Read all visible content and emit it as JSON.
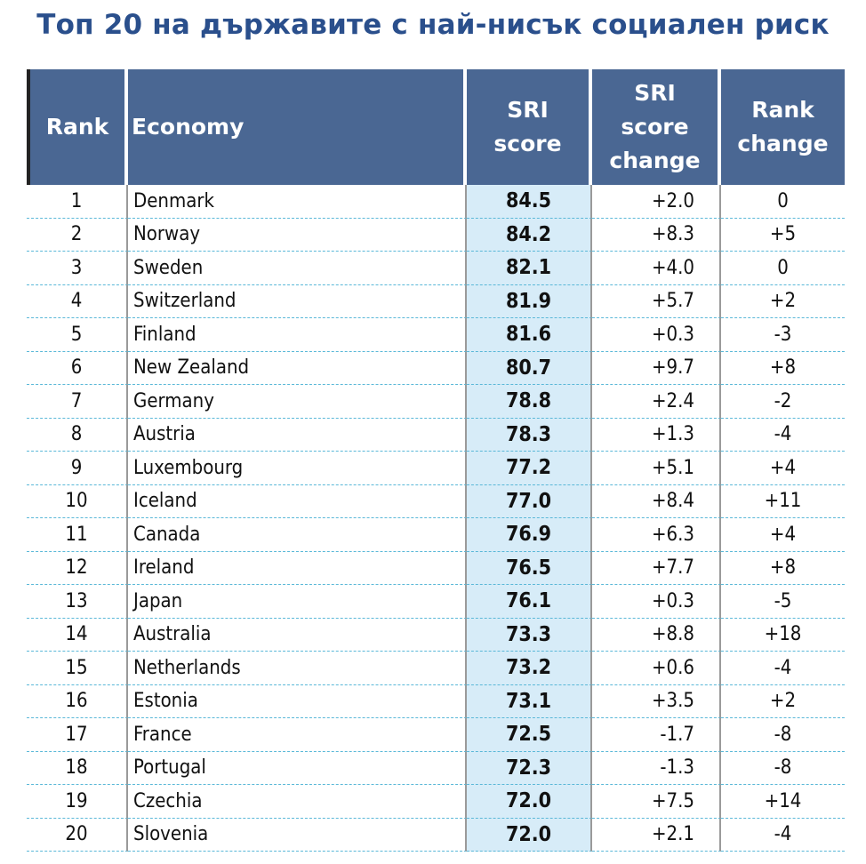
{
  "title": "Топ 20 на държавите с най-нисък социален риск",
  "headers": {
    "rank": "Rank",
    "economy": "Economy",
    "sri_score_1": "SRI",
    "sri_score_2": "score",
    "sri_change_1": "SRI",
    "sri_change_2": "score",
    "sri_change_3": "change",
    "rank_change_1": "Rank",
    "rank_change_2": "change"
  },
  "rows": [
    {
      "rank": "1",
      "economy": "Denmark",
      "score": "84.5",
      "change": "+2.0",
      "rank_change": "0"
    },
    {
      "rank": "2",
      "economy": "Norway",
      "score": "84.2",
      "change": "+8.3",
      "rank_change": "+5"
    },
    {
      "rank": "3",
      "economy": "Sweden",
      "score": "82.1",
      "change": "+4.0",
      "rank_change": "0"
    },
    {
      "rank": "4",
      "economy": "Switzerland",
      "score": "81.9",
      "change": "+5.7",
      "rank_change": "+2"
    },
    {
      "rank": "5",
      "economy": "Finland",
      "score": "81.6",
      "change": "+0.3",
      "rank_change": "-3"
    },
    {
      "rank": "6",
      "economy": "New Zealand",
      "score": "80.7",
      "change": "+9.7",
      "rank_change": "+8"
    },
    {
      "rank": "7",
      "economy": "Germany",
      "score": "78.8",
      "change": "+2.4",
      "rank_change": "-2"
    },
    {
      "rank": "8",
      "economy": "Austria",
      "score": "78.3",
      "change": "+1.3",
      "rank_change": "-4"
    },
    {
      "rank": "9",
      "economy": "Luxembourg",
      "score": "77.2",
      "change": "+5.1",
      "rank_change": "+4"
    },
    {
      "rank": "10",
      "economy": "Iceland",
      "score": "77.0",
      "change": "+8.4",
      "rank_change": "+11"
    },
    {
      "rank": "11",
      "economy": "Canada",
      "score": "76.9",
      "change": "+6.3",
      "rank_change": "+4"
    },
    {
      "rank": "12",
      "economy": "Ireland",
      "score": "76.5",
      "change": "+7.7",
      "rank_change": "+8"
    },
    {
      "rank": "13",
      "economy": "Japan",
      "score": "76.1",
      "change": "+0.3",
      "rank_change": "-5"
    },
    {
      "rank": "14",
      "economy": "Australia",
      "score": "73.3",
      "change": "+8.8",
      "rank_change": "+18"
    },
    {
      "rank": "15",
      "economy": "Netherlands",
      "score": "73.2",
      "change": "+0.6",
      "rank_change": "-4"
    },
    {
      "rank": "16",
      "economy": "Estonia",
      "score": "73.1",
      "change": "+3.5",
      "rank_change": "+2"
    },
    {
      "rank": "17",
      "economy": "France",
      "score": "72.5",
      "change": "-1.7",
      "rank_change": "-8"
    },
    {
      "rank": "18",
      "economy": "Portugal",
      "score": "72.3",
      "change": "-1.3",
      "rank_change": "-8"
    },
    {
      "rank": "19",
      "economy": "Czechia",
      "score": "72.0",
      "change": "+7.5",
      "rank_change": "+14"
    },
    {
      "rank": "20",
      "economy": "Slovenia",
      "score": "72.0",
      "change": "+2.1",
      "rank_change": "-4"
    }
  ],
  "colors": {
    "title": "#2a4f8c",
    "header_bg": "#4a6793",
    "score_bg": "#d7ecf8",
    "row_divider": "#5ab8d8"
  }
}
